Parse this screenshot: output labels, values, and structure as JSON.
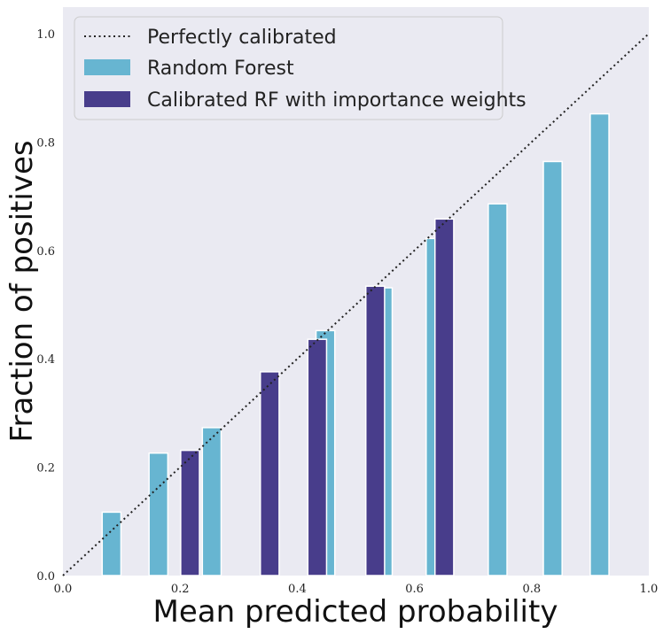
{
  "chart_data": {
    "type": "bar",
    "xlabel": "Mean predicted probability",
    "ylabel": "Fraction of positives",
    "xlim": [
      0.0,
      1.0
    ],
    "ylim": [
      0.0,
      1.0
    ],
    "xticks": [
      "0.0",
      "0.2",
      "0.4",
      "0.6",
      "0.8",
      "1.0"
    ],
    "yticks": [
      "0.0",
      "0.2",
      "0.4",
      "0.6",
      "0.8",
      "1.0"
    ],
    "grid": false,
    "legend_position": "top-left",
    "reference_line": {
      "name": "Perfectly calibrated",
      "x": [
        0.0,
        1.0
      ],
      "y": [
        0.0,
        1.0
      ],
      "style": "dotted"
    },
    "bar_width": 0.032,
    "series": [
      {
        "name": "Random Forest",
        "color": "#67b5d1",
        "x": [
          0.083,
          0.163,
          0.254,
          0.448,
          0.546,
          0.636,
          0.742,
          0.836,
          0.916
        ],
        "y": [
          0.117,
          0.226,
          0.273,
          0.452,
          0.531,
          0.622,
          0.686,
          0.764,
          0.852
        ]
      },
      {
        "name": "Calibrated RF with importance weights",
        "color": "#483d8b",
        "x": [
          0.217,
          0.353,
          0.434,
          0.533,
          0.651
        ],
        "y": [
          0.231,
          0.376,
          0.436,
          0.534,
          0.658
        ]
      }
    ]
  }
}
